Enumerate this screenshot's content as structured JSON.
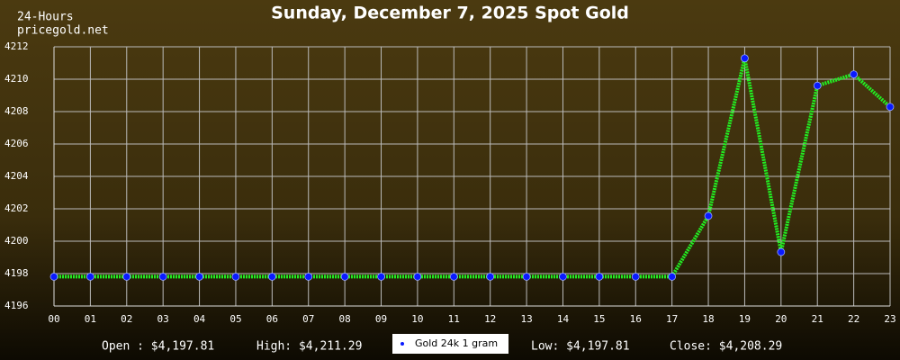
{
  "chart_data": {
    "type": "line",
    "title": "Sunday, December 7, 2025 Spot Gold",
    "source_labels": [
      "24-Hours",
      "pricegold.net"
    ],
    "categories": [
      "00",
      "01",
      "02",
      "03",
      "04",
      "05",
      "06",
      "07",
      "08",
      "09",
      "10",
      "11",
      "12",
      "13",
      "14",
      "15",
      "16",
      "17",
      "18",
      "19",
      "20",
      "21",
      "22",
      "23"
    ],
    "series": [
      {
        "name": "Gold 24k 1 gram",
        "color": "#22ee22",
        "marker_color": "#0a1aff",
        "values": [
          4197.81,
          4197.81,
          4197.81,
          4197.81,
          4197.81,
          4197.81,
          4197.81,
          4197.81,
          4197.81,
          4197.81,
          4197.81,
          4197.81,
          4197.81,
          4197.81,
          4197.81,
          4197.81,
          4197.81,
          4197.81,
          4201.56,
          4211.29,
          4199.33,
          4209.6,
          4210.3,
          4208.29
        ]
      }
    ],
    "ylim": [
      4196,
      4212
    ],
    "yticks": [
      4196,
      4198,
      4200,
      4202,
      4204,
      4206,
      4208,
      4210,
      4212
    ],
    "grid": true,
    "summary": [
      "Open : $4,197.81",
      "High: $4,211.29",
      "Low: $4,197.81",
      "Close: $4,208.29"
    ]
  }
}
